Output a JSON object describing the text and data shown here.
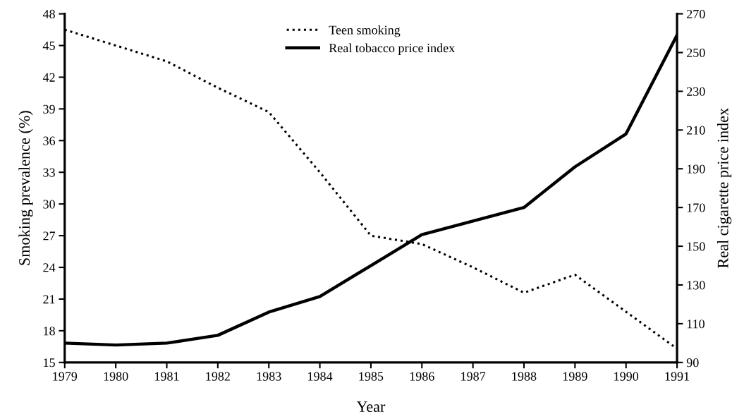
{
  "chart_data": {
    "type": "line",
    "xlabel": "Year",
    "ylabel": "Smoking prevalence (%)",
    "y2label": "Real cigarette price index",
    "x": [
      1979,
      1980,
      1981,
      1982,
      1983,
      1984,
      1985,
      1986,
      1987,
      1988,
      1989,
      1990,
      1991
    ],
    "series": [
      {
        "name": "Teen smoking",
        "color": "#000000",
        "line_style": "dotted",
        "values": [
          46.5,
          45.0,
          43.5,
          41.0,
          38.7,
          33.0,
          27.0,
          26.2,
          24.0,
          21.6,
          23.3,
          19.8,
          16.3
        ]
      },
      {
        "name": "Real tobacco price index",
        "color": "#000000",
        "line_style": "solid",
        "axis": "y2",
        "values": [
          100,
          99,
          100,
          104,
          116,
          124,
          140,
          156,
          163,
          170,
          191,
          208,
          259
        ]
      }
    ],
    "xlim": [
      1979,
      1991
    ],
    "xticks": [
      1979,
      1980,
      1981,
      1982,
      1983,
      1984,
      1985,
      1986,
      1987,
      1988,
      1989,
      1990,
      1991
    ],
    "ylim": [
      15,
      48
    ],
    "yticks": [
      15,
      18,
      21,
      24,
      27,
      30,
      33,
      36,
      39,
      42,
      45,
      48
    ],
    "y2lim": [
      90,
      270
    ],
    "y2ticks": [
      90,
      110,
      130,
      150,
      170,
      190,
      210,
      230,
      250,
      270
    ],
    "legend": "top",
    "grid": false,
    "marker": "none"
  }
}
